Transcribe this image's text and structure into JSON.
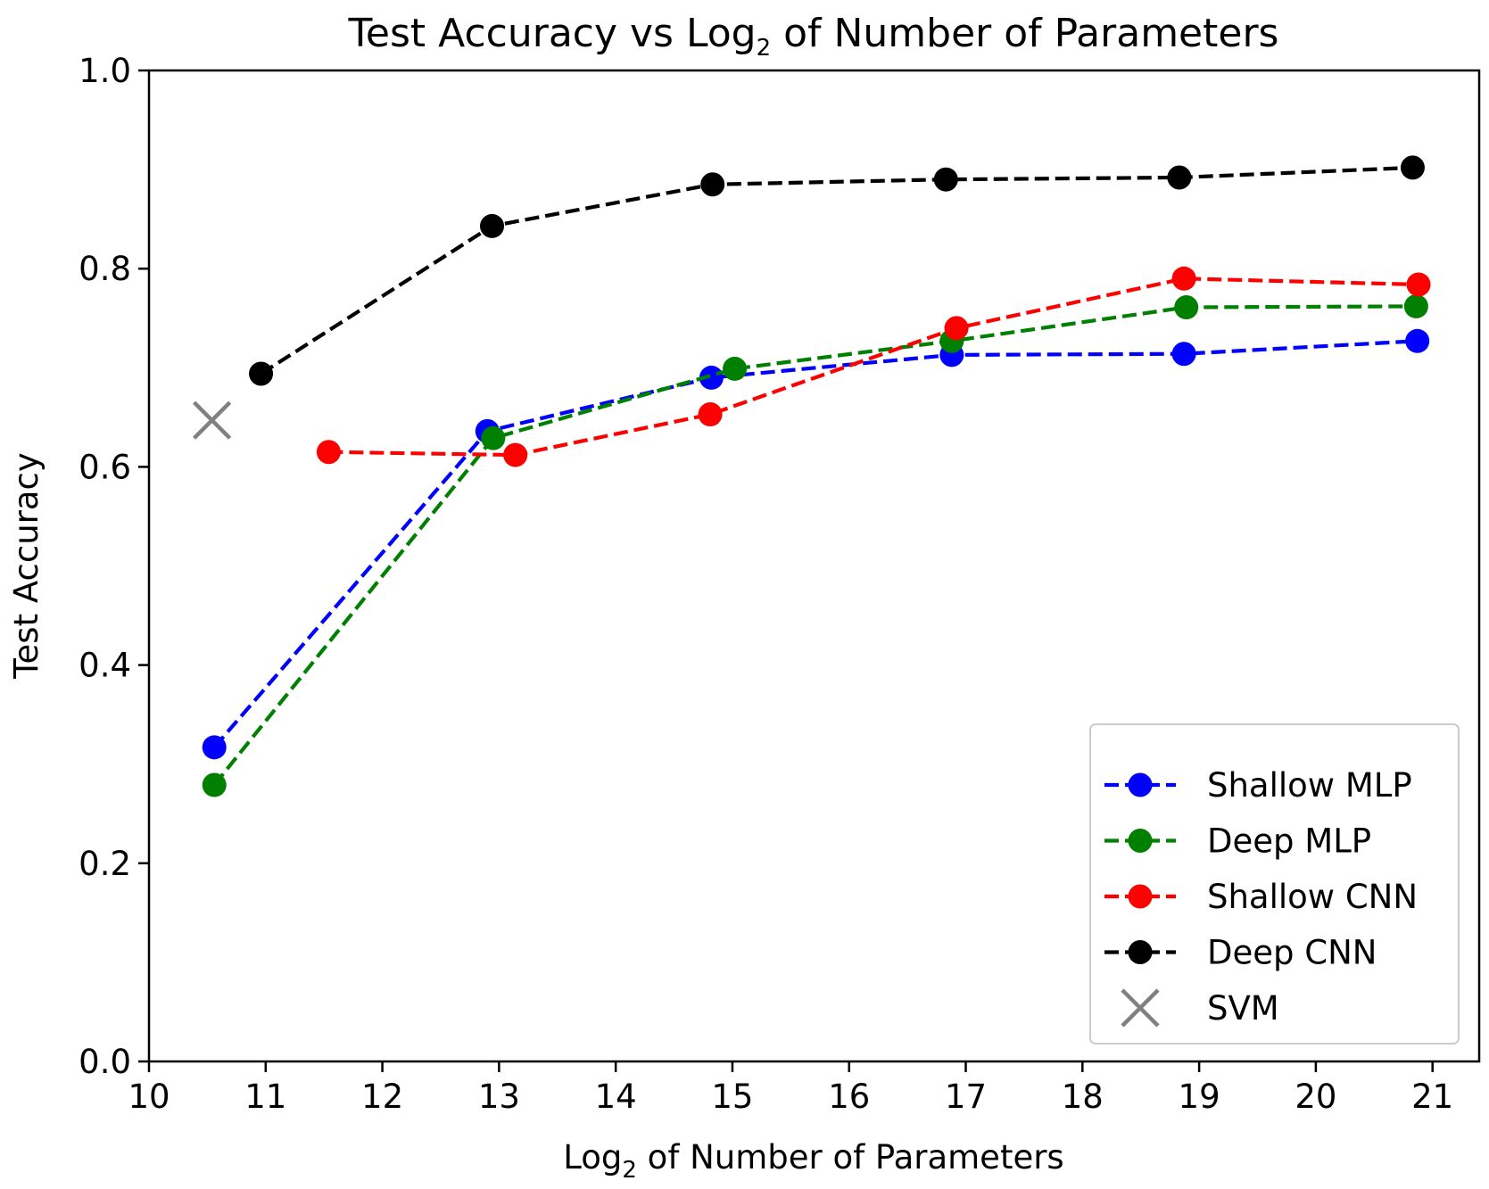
{
  "chart_data": {
    "type": "line",
    "title": {
      "pre": "Test Accuracy vs Log",
      "sub": "2",
      "post": " of Number of Parameters"
    },
    "xlabel": {
      "pre": "Log",
      "sub": "2",
      "post": " of Number of Parameters"
    },
    "ylabel": "Test Accuracy",
    "xlim": [
      10,
      21.4
    ],
    "ylim": [
      0.0,
      1.0
    ],
    "xticks": [
      "10",
      "11",
      "12",
      "13",
      "14",
      "15",
      "16",
      "17",
      "18",
      "19",
      "20",
      "21"
    ],
    "yticks": [
      "0.0",
      "0.2",
      "0.4",
      "0.6",
      "0.8",
      "1.0"
    ],
    "grid": false,
    "legend_position": "lower-right",
    "series": [
      {
        "name": "Shallow MLP",
        "color": "#0000ff",
        "linestyle": "dashed",
        "marker": "circle",
        "points": [
          [
            10.56,
            0.317
          ],
          [
            12.9,
            0.636
          ],
          [
            14.82,
            0.69
          ],
          [
            16.88,
            0.713
          ],
          [
            18.87,
            0.714
          ],
          [
            20.87,
            0.727
          ]
        ]
      },
      {
        "name": "Deep MLP",
        "color": "#008000",
        "linestyle": "dashed",
        "marker": "circle",
        "points": [
          [
            10.56,
            0.279
          ],
          [
            12.95,
            0.629
          ],
          [
            15.02,
            0.699
          ],
          [
            16.88,
            0.727
          ],
          [
            18.89,
            0.761
          ],
          [
            20.86,
            0.762
          ]
        ]
      },
      {
        "name": "Shallow CNN",
        "color": "#ff0000",
        "linestyle": "dashed",
        "marker": "circle",
        "points": [
          [
            11.54,
            0.615
          ],
          [
            13.14,
            0.612
          ],
          [
            14.81,
            0.653
          ],
          [
            16.92,
            0.74
          ],
          [
            18.87,
            0.79
          ],
          [
            20.88,
            0.784
          ]
        ]
      },
      {
        "name": "Deep CNN",
        "color": "#000000",
        "linestyle": "dashed",
        "marker": "circle",
        "points": [
          [
            10.96,
            0.694
          ],
          [
            12.94,
            0.843
          ],
          [
            14.83,
            0.885
          ],
          [
            16.83,
            0.89
          ],
          [
            18.83,
            0.892
          ],
          [
            20.83,
            0.902
          ]
        ]
      },
      {
        "name": "SVM",
        "color": "#808080",
        "linestyle": "none",
        "marker": "x",
        "points": [
          [
            10.54,
            0.647
          ]
        ]
      }
    ]
  }
}
